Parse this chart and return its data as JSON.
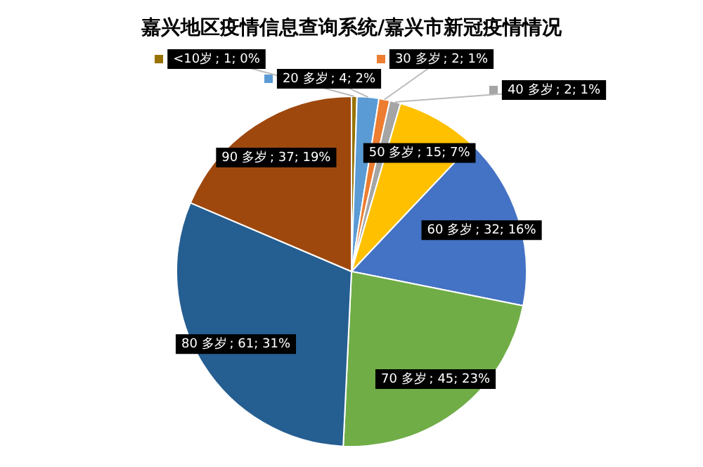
{
  "chart_data": {
    "type": "pie",
    "title": "嘉兴地区疫情信息查询系统/嘉兴市新冠疫情情况",
    "categories": [
      "<10岁",
      "20 多岁",
      "30 多岁",
      "40 多岁",
      "50 多岁",
      "60 多岁",
      "70 多岁",
      "80 多岁",
      "90 多岁"
    ],
    "values": [
      1,
      4,
      2,
      2,
      15,
      32,
      45,
      61,
      37
    ],
    "colors": [
      "#997300",
      "#5b9bd5",
      "#ed7d31",
      "#a5a5a5",
      "#ffc000",
      "#4472c4",
      "#70ad47",
      "#255e91",
      "#9e480e"
    ],
    "value_labels": [
      "; 1; 0%",
      "; 4; 2%",
      "; 2; 1%",
      "; 2; 1%",
      "; 15; 7%",
      "; 32; 16%",
      "; 45; 23%",
      "; 61; 31%",
      "; 37; 19%"
    ],
    "legend": "top"
  }
}
